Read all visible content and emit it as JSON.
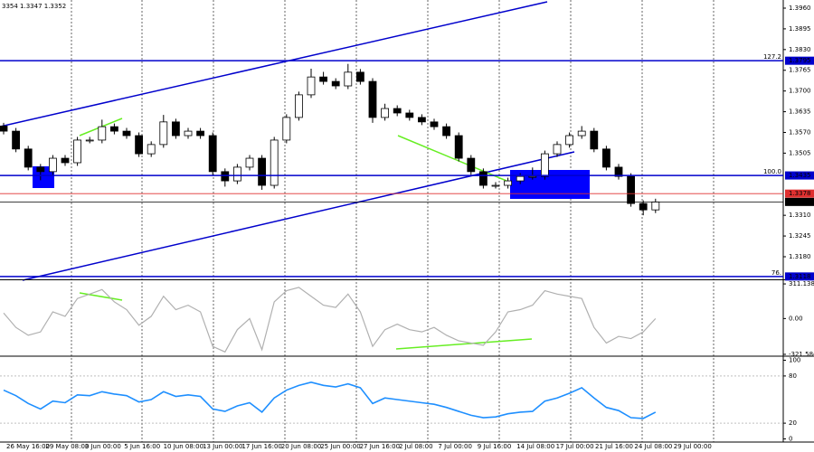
{
  "info": "3354 1.3347 1.3352",
  "chart_data": [
    {
      "type": "candlestick",
      "open": [
        1.359,
        1.3574,
        1.3518,
        1.3461,
        1.3447,
        1.3489,
        1.3475,
        1.3546,
        1.3546,
        1.3588,
        1.3574,
        1.356,
        1.3503,
        1.3532,
        1.3603,
        1.356,
        1.3574,
        1.356,
        1.3447,
        1.3418,
        1.3461,
        1.3489,
        1.3404,
        1.3546,
        1.3617,
        1.3688,
        1.3744,
        1.373,
        1.3716,
        1.3759,
        1.373,
        1.3617,
        1.3645,
        1.3631,
        1.3617,
        1.3603,
        1.3588,
        1.356,
        1.3489,
        1.3447,
        1.3404,
        1.3404,
        1.3418,
        1.3432,
        1.3432,
        1.3503,
        1.3532,
        1.356,
        1.3574,
        1.3518,
        1.3461,
        1.3432,
        1.3347,
        1.3327
      ],
      "high": [
        1.36,
        1.3584,
        1.3528,
        1.3471,
        1.3499,
        1.3499,
        1.3556,
        1.3556,
        1.361,
        1.3598,
        1.3584,
        1.357,
        1.3542,
        1.3625,
        1.3613,
        1.3584,
        1.3584,
        1.357,
        1.3457,
        1.3471,
        1.3499,
        1.3499,
        1.3556,
        1.3627,
        1.3698,
        1.377,
        1.376,
        1.374,
        1.3785,
        1.3769,
        1.374,
        1.366,
        1.3655,
        1.3641,
        1.3627,
        1.3613,
        1.3598,
        1.357,
        1.3499,
        1.3457,
        1.3414,
        1.3428,
        1.3442,
        1.346,
        1.3513,
        1.3542,
        1.357,
        1.359,
        1.3584,
        1.3528,
        1.3471,
        1.3442,
        1.3357,
        1.3362
      ],
      "low": [
        1.3564,
        1.3508,
        1.3451,
        1.342,
        1.3437,
        1.3465,
        1.3465,
        1.3536,
        1.3536,
        1.3564,
        1.355,
        1.3493,
        1.3493,
        1.3522,
        1.355,
        1.355,
        1.355,
        1.3437,
        1.34,
        1.3408,
        1.3451,
        1.339,
        1.3394,
        1.3536,
        1.3607,
        1.3678,
        1.372,
        1.3706,
        1.3706,
        1.372,
        1.36,
        1.3607,
        1.3621,
        1.3607,
        1.3593,
        1.3578,
        1.355,
        1.3479,
        1.3437,
        1.3394,
        1.3394,
        1.3394,
        1.3408,
        1.3422,
        1.3422,
        1.3493,
        1.3522,
        1.355,
        1.3508,
        1.3451,
        1.3422,
        1.3337,
        1.331,
        1.3317
      ],
      "close": [
        1.3574,
        1.3518,
        1.3461,
        1.3447,
        1.3489,
        1.3475,
        1.3546,
        1.3546,
        1.3588,
        1.3574,
        1.356,
        1.3503,
        1.3532,
        1.3603,
        1.356,
        1.3574,
        1.356,
        1.3447,
        1.3418,
        1.3461,
        1.3489,
        1.3404,
        1.3546,
        1.3617,
        1.3688,
        1.3744,
        1.373,
        1.3716,
        1.3759,
        1.373,
        1.3617,
        1.3645,
        1.3631,
        1.3617,
        1.3603,
        1.3588,
        1.356,
        1.3489,
        1.3447,
        1.3404,
        1.3404,
        1.3418,
        1.3432,
        1.3432,
        1.3503,
        1.3532,
        1.356,
        1.3574,
        1.3518,
        1.3461,
        1.3432,
        1.3347,
        1.3327,
        1.3352
      ],
      "ylim": [
        1.31119,
        1.39855
      ],
      "yticks": [
        {
          "value": 1.396,
          "label": "1.3960"
        },
        {
          "value": 1.3895,
          "label": "1.3895"
        },
        {
          "value": 1.383,
          "label": "1.3830"
        },
        {
          "value": 1.3765,
          "label": "1.3765"
        },
        {
          "value": 1.37,
          "label": "1.3700"
        },
        {
          "value": 1.3635,
          "label": "1.3635"
        },
        {
          "value": 1.357,
          "label": "1.3570"
        },
        {
          "value": 1.3505,
          "label": "1.3505"
        },
        {
          "value": 1.331,
          "label": "1.3310"
        },
        {
          "value": 1.3245,
          "label": "1.3245"
        },
        {
          "value": 1.318,
          "label": "1.3180"
        }
      ],
      "levels": [
        {
          "name": "127.2",
          "value": 1.3795,
          "label": "1.3795",
          "color": "#0000cc"
        },
        {
          "name": "100.0",
          "value": 1.3435,
          "label": "1.3435",
          "color": "#0000cc"
        },
        {
          "name": "76.",
          "value": 1.3118,
          "label": "1.3118",
          "color": "#0000cc"
        },
        {
          "value": 1.3378,
          "label": "1.3378",
          "color": "#e03030"
        },
        {
          "value": 1.3352,
          "label": "1.3352",
          "color": "#000000"
        }
      ],
      "time_labels": [
        "26 May 16:00",
        "29 May 08:00",
        "3 Jun 00:00",
        "5 Jun 16:00",
        "10 Jun 08:00",
        "13 Jun 00:00",
        "17 Jun 16:00",
        "20 Jun 08:00",
        "25 Jun 00:00",
        "27 Jun 16:00",
        "2 Jul 08:00",
        "7 Jul 00:00",
        "9 Jul 16:00",
        "14 Jul 08:00",
        "17 Jul 00:00",
        "21 Jul 16:00",
        "24 Jul 08:00",
        "29 Jul 00:00"
      ]
    },
    {
      "type": "line",
      "color": "#b0b0b0",
      "values": [
        50,
        -80,
        -150,
        -120,
        60,
        20,
        180,
        220,
        260,
        150,
        80,
        -60,
        20,
        200,
        80,
        120,
        60,
        -250,
        -300,
        -100,
        0,
        -280,
        150,
        250,
        280,
        200,
        120,
        100,
        220,
        60,
        -250,
        -100,
        -50,
        -100,
        -120,
        -80,
        -150,
        -200,
        -220,
        -240,
        -120,
        60,
        80,
        120,
        250,
        220,
        200,
        180,
        -80,
        -220,
        -160,
        -180,
        -120,
        0
      ],
      "ylim": [
        -330,
        336
      ],
      "yticks": [
        311.138,
        {
          "value": 0,
          "label": "0.00"
        },
        -321.584
      ]
    },
    {
      "type": "line",
      "color": "#1e8fff",
      "values": [
        62,
        55,
        45,
        38,
        48,
        46,
        56,
        55,
        60,
        57,
        55,
        47,
        50,
        60,
        54,
        56,
        54,
        38,
        35,
        42,
        46,
        34,
        52,
        62,
        68,
        72,
        68,
        66,
        70,
        65,
        45,
        52,
        50,
        48,
        46,
        44,
        40,
        35,
        30,
        27,
        28,
        32,
        34,
        35,
        48,
        52,
        58,
        65,
        52,
        40,
        36,
        27,
        26,
        34
      ],
      "ylim": [
        -4,
        104
      ],
      "yticks": [
        100,
        80,
        20,
        0
      ],
      "grid_ticks": [
        80,
        20
      ]
    }
  ]
}
